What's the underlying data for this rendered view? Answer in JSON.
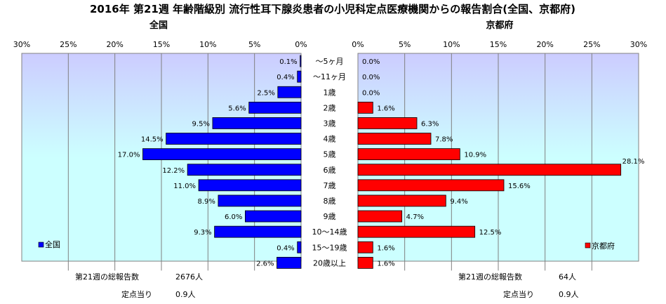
{
  "chart_data": {
    "type": "bar",
    "title": "2016年 第21週 年齢階級別 流行性耳下腺炎患者の小児科定点医療機関からの報告割合(全国、京都府)",
    "categories": [
      "～5ヶ月",
      "～11ヶ月",
      "1歳",
      "2歳",
      "3歳",
      "4歳",
      "5歳",
      "6歳",
      "7歳",
      "8歳",
      "9歳",
      "10～14歳",
      "15～19歳",
      "20歳以上"
    ],
    "xlim": [
      0,
      30
    ],
    "tick_labels": [
      "0%",
      "5%",
      "10%",
      "15%",
      "20%",
      "25%",
      "30%"
    ],
    "series": [
      {
        "name": "全国",
        "panel_title": "全国",
        "color": "#0000ff",
        "values": [
          0.1,
          0.4,
          2.5,
          5.6,
          9.5,
          14.5,
          17.0,
          12.2,
          11.0,
          8.9,
          6.0,
          9.3,
          0.4,
          2.6
        ],
        "data_labels": [
          "0.1%",
          "0.4%",
          "2.5%",
          "5.6%",
          "9.5%",
          "14.5%",
          "17.0%",
          "12.2%",
          "11.0%",
          "8.9%",
          "6.0%",
          "9.3%",
          "0.4%",
          "2.6%"
        ],
        "legend": "全国",
        "total_label": "第21週の総報告数",
        "total_value": "2676人",
        "per_label": "定点当り",
        "per_value": "0.9人"
      },
      {
        "name": "京都府",
        "panel_title": "京都府",
        "color": "#ff0000",
        "values": [
          0.0,
          0.0,
          0.0,
          1.6,
          6.3,
          7.8,
          10.9,
          28.1,
          15.6,
          9.4,
          4.7,
          12.5,
          1.6,
          1.6
        ],
        "data_labels": [
          "0.0%",
          "0.0%",
          "0.0%",
          "1.6%",
          "6.3%",
          "7.8%",
          "10.9%",
          "28.1%",
          "15.6%",
          "9.4%",
          "4.7%",
          "12.5%",
          "1.6%",
          "1.6%"
        ],
        "legend": "京都府",
        "total_label": "第21週の総報告数",
        "total_value": "64人",
        "per_label": "定点当り",
        "per_value": "0.9人"
      }
    ]
  }
}
